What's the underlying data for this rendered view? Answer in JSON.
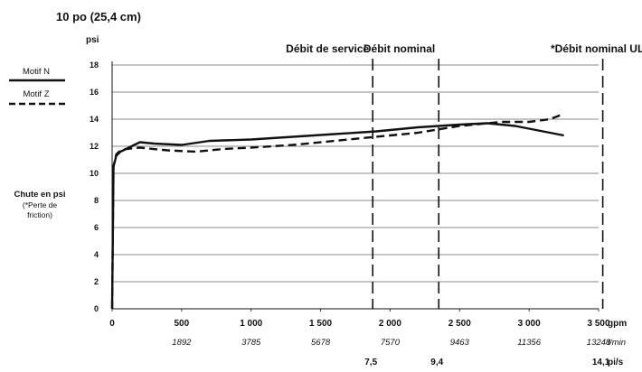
{
  "chart_data": {
    "type": "line",
    "title": "10 po (25,4 cm)",
    "ylabel_top": "psi",
    "ylabel_side": [
      "Chute en psi",
      "(*Perte de",
      "friction)"
    ],
    "y_ticks": [
      0,
      2,
      4,
      6,
      8,
      10,
      12,
      14,
      16,
      18
    ],
    "ylim": [
      0,
      18
    ],
    "xlim": [
      0,
      3500
    ],
    "x_ticks": [
      {
        "value": 0,
        "label": "0"
      },
      {
        "value": 500,
        "label": "500"
      },
      {
        "value": 1000,
        "label": "1 000"
      },
      {
        "value": 1500,
        "label": "1 500"
      },
      {
        "value": 2000,
        "label": "2 000"
      },
      {
        "value": 2500,
        "label": "2 500"
      },
      {
        "value": 3000,
        "label": "3 000"
      },
      {
        "value": 3500,
        "label": "3 500"
      }
    ],
    "x_unit": "gpm",
    "x_secondary": {
      "unit": "l/min",
      "ticks": [
        {
          "value": 500,
          "label": "1892"
        },
        {
          "value": 1000,
          "label": "3785"
        },
        {
          "value": 1500,
          "label": "5678"
        },
        {
          "value": 2000,
          "label": "7570"
        },
        {
          "value": 2500,
          "label": "9463"
        },
        {
          "value": 3000,
          "label": "11356"
        },
        {
          "value": 3500,
          "label": "13248"
        }
      ]
    },
    "velocity": {
      "unit": "pi/s",
      "ticks": [
        {
          "value": 1875,
          "label": "7,5"
        },
        {
          "value": 2350,
          "label": "9,4"
        },
        {
          "value": 3530,
          "label": "14,1"
        }
      ]
    },
    "reference_lines": [
      {
        "x": 1875,
        "label": "Débit de service"
      },
      {
        "x": 2350,
        "label": "Débit nominal"
      },
      {
        "x": 3530,
        "label": "*Débit nominal UL"
      }
    ],
    "series": [
      {
        "name": "Motif N",
        "style": "solid",
        "x": [
          0,
          10,
          30,
          60,
          100,
          200,
          300,
          500,
          700,
          1000,
          1300,
          1600,
          1900,
          2200,
          2500,
          2700,
          2900,
          3100,
          3250
        ],
        "y": [
          0,
          10.5,
          11.3,
          11.6,
          11.8,
          12.3,
          12.2,
          12.1,
          12.4,
          12.5,
          12.7,
          12.9,
          13.1,
          13.4,
          13.6,
          13.7,
          13.5,
          13.1,
          12.8
        ]
      },
      {
        "name": "Motif Z",
        "style": "dashed",
        "x": [
          0,
          10,
          30,
          60,
          100,
          200,
          400,
          600,
          800,
          1000,
          1300,
          1600,
          1900,
          2200,
          2500,
          2800,
          3000,
          3150,
          3250
        ],
        "y": [
          0,
          10.5,
          11.4,
          11.7,
          11.8,
          11.9,
          11.7,
          11.6,
          11.8,
          11.9,
          12.1,
          12.4,
          12.7,
          13.0,
          13.5,
          13.8,
          13.8,
          14.0,
          14.4
        ]
      }
    ],
    "grid": true,
    "legend": "left"
  }
}
